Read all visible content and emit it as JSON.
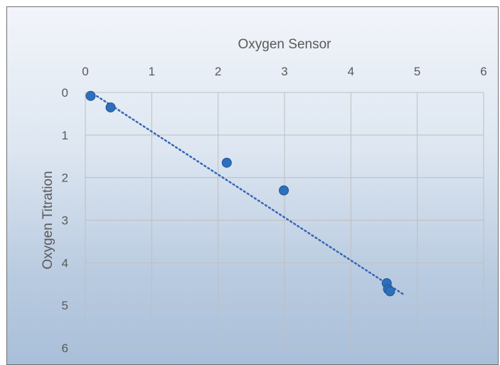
{
  "chart_data": {
    "type": "scatter",
    "xlabel": "Oxygen Sensor",
    "ylabel": "Oxygen Titration",
    "xlim": [
      0,
      6
    ],
    "ylim": [
      0,
      6
    ],
    "y_reversed": true,
    "x_axis_position": "top",
    "x_ticks": [
      "0",
      "1",
      "2",
      "3",
      "4",
      "5",
      "6"
    ],
    "y_ticks": [
      "0",
      "1",
      "2",
      "3",
      "4",
      "5",
      "6"
    ],
    "grid": true,
    "series": [
      {
        "points": [
          {
            "x": 0.08,
            "y": 0.08
          },
          {
            "x": 0.38,
            "y": 0.35
          },
          {
            "x": 2.13,
            "y": 1.65
          },
          {
            "x": 2.99,
            "y": 2.3
          },
          {
            "x": 4.54,
            "y": 4.48
          },
          {
            "x": 4.56,
            "y": 4.62
          },
          {
            "x": 4.59,
            "y": 4.67
          }
        ]
      }
    ],
    "trendline": {
      "type": "linear",
      "style": "dotted",
      "start": {
        "x": 0.12,
        "y": 0.03
      },
      "end": {
        "x": 4.8,
        "y": 4.75
      }
    },
    "colors": {
      "marker": "#2e6fbc",
      "trendline": "#3566b5"
    }
  }
}
